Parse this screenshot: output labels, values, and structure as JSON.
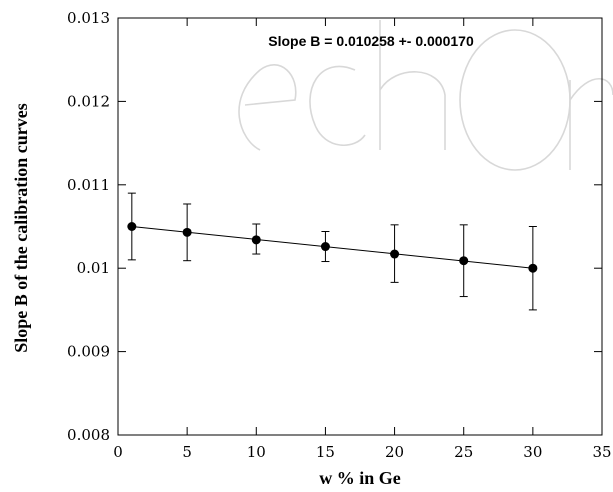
{
  "chart_data": {
    "type": "scatter",
    "xlabel": "w % in Ge",
    "ylabel": "Slope B of the calibration curves",
    "xlim": [
      0,
      35
    ],
    "ylim": [
      0.008,
      0.013
    ],
    "xticks": [
      0,
      5,
      10,
      15,
      20,
      25,
      30,
      35
    ],
    "xtick_labels": [
      "0",
      "5",
      "10",
      "15",
      "20",
      "25",
      "30",
      "35"
    ],
    "yticks": [
      0.008,
      0.009,
      0.01,
      0.011,
      0.012,
      0.013
    ],
    "ytick_labels": [
      "0.008",
      "0.009",
      "0.01",
      "0.011",
      "0.012",
      "0.013"
    ],
    "annotation": "Slope B = 0.010258 +- 0.000170",
    "grid": false,
    "series": [
      {
        "x": [
          1,
          5,
          10,
          15,
          20,
          25,
          30
        ],
        "y": [
          0.0105,
          0.01043,
          0.01034,
          0.01026,
          0.01017,
          0.01009,
          0.01
        ],
        "err_low": [
          0.0101,
          0.01009,
          0.01017,
          0.01008,
          0.00983,
          0.00966,
          0.0095
        ],
        "err_high": [
          0.0109,
          0.01077,
          0.01053,
          0.01044,
          0.01052,
          0.01052,
          0.0105
        ],
        "marker": "circle",
        "fit_line": {
          "x": [
            1,
            30
          ],
          "y": [
            0.0105,
            0.01
          ]
        }
      }
    ],
    "colors": {
      "marker": "#000000",
      "line": "#000000",
      "axis": "#000000"
    }
  }
}
